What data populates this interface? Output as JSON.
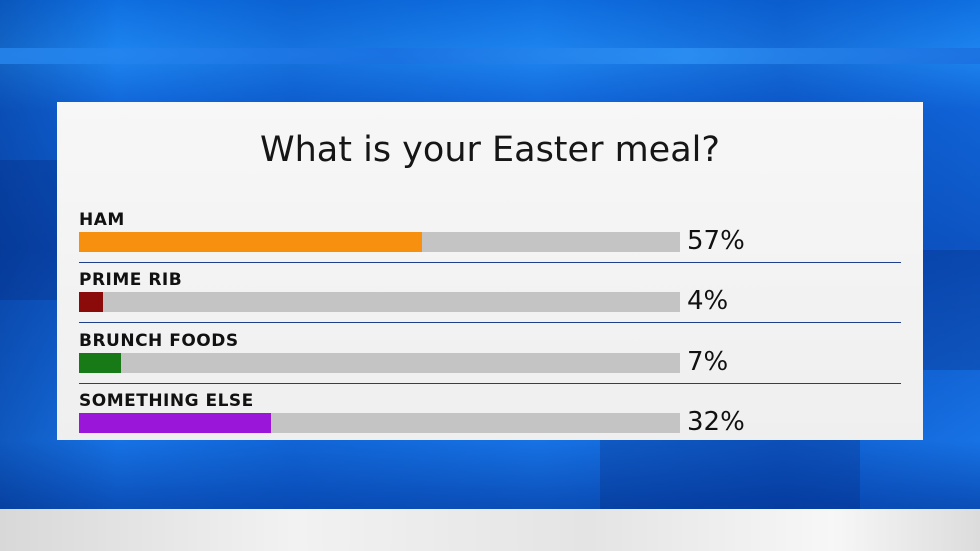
{
  "chart_data": {
    "type": "bar",
    "title": "What is your Easter meal?",
    "categories": [
      "HAM",
      "PRIME RIB",
      "BRUNCH FOODS",
      "SOMETHING ELSE"
    ],
    "values": [
      57,
      4,
      7,
      32
    ],
    "value_labels": [
      "57%",
      "4%",
      "7%",
      "32%"
    ],
    "colors": [
      "#f7900f",
      "#8b0a0a",
      "#187a16",
      "#9a16d8"
    ],
    "track_color": "#c4c4c4",
    "ylim": [
      0,
      100
    ],
    "orientation": "horizontal"
  }
}
